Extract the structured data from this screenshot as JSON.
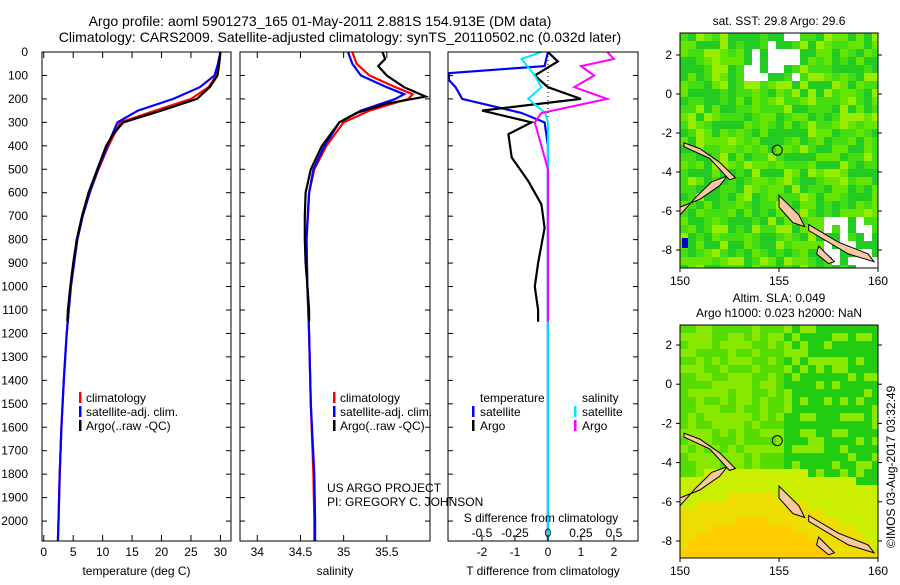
{
  "title": {
    "line1": "Argo profile: aoml 5901273_165 01-May-2011 2.881S 154.913E (DM data)",
    "line2": "Climatology: CARS2009. Satellite-adjusted climatology: synTS_20110502.nc (0.032d later)"
  },
  "colors": {
    "climatology": "#ff0000",
    "satellite": "#0000ff",
    "argo": "#000000",
    "sal_satellite": "#00e8ff",
    "sal_argo": "#ff00ff"
  },
  "chart_data": [
    {
      "type": "line",
      "name": "temperature",
      "xlabel": "temperature (deg C)",
      "ylabel": "depth",
      "xlim": [
        -0.3,
        31.8
      ],
      "ylim": [
        0,
        2085
      ],
      "xticks": [
        0,
        5,
        10,
        15,
        20,
        25,
        30
      ],
      "yticks": [
        0,
        100,
        200,
        300,
        400,
        500,
        600,
        700,
        800,
        900,
        1000,
        1100,
        1200,
        1300,
        1400,
        1500,
        1600,
        1700,
        1800,
        1900,
        2000
      ],
      "legend": [
        "climatology",
        "satellite-adj. clim.",
        "Argo(..raw -QC)"
      ],
      "series": [
        {
          "name": "climatology",
          "color": "#ff0000",
          "depth": [
            0,
            50,
            100,
            150,
            200,
            250,
            300,
            400,
            500,
            600,
            700,
            800,
            1000,
            1200,
            1400,
            1600,
            1800,
            2000,
            2085
          ],
          "values": [
            30,
            29.8,
            29.3,
            28,
            25,
            19,
            13,
            11,
            9.3,
            7.8,
            6.6,
            5.7,
            4.6,
            3.9,
            3.4,
            3,
            2.7,
            2.5,
            2.4
          ]
        },
        {
          "name": "satellite-adj. clim.",
          "color": "#0000ff",
          "depth": [
            0,
            50,
            100,
            150,
            200,
            250,
            300,
            400,
            500,
            600,
            700,
            800,
            1000,
            1200,
            1400,
            1600,
            1800,
            2000,
            2085
          ],
          "values": [
            30,
            29.6,
            29,
            26.5,
            22,
            16,
            12.5,
            10.8,
            9.2,
            7.8,
            6.6,
            5.7,
            4.6,
            3.9,
            3.4,
            3,
            2.7,
            2.5,
            2.4
          ]
        },
        {
          "name": "Argo(..raw -QC)",
          "color": "#000000",
          "depth": [
            0,
            50,
            100,
            150,
            200,
            250,
            300,
            350,
            400,
            500,
            600,
            700,
            800,
            900,
            1000,
            1100,
            1150
          ],
          "values": [
            30,
            29.8,
            29.5,
            28.2,
            26,
            20,
            13.5,
            11.8,
            10.6,
            9.1,
            7.6,
            6.5,
            5.6,
            5,
            4.5,
            4.1,
            4
          ]
        }
      ]
    },
    {
      "type": "line",
      "name": "salinity",
      "xlabel": "salinity",
      "ylabel": "depth",
      "xlim": [
        33.8,
        36.0
      ],
      "ylim": [
        0,
        2085
      ],
      "xticks": [
        34,
        34.5,
        35,
        35.5
      ],
      "legend": [
        "climatology",
        "satellite-adj. clim.",
        "Argo(..raw -QC)"
      ],
      "series": [
        {
          "name": "climatology",
          "color": "#ff0000",
          "depth": [
            0,
            50,
            100,
            150,
            180,
            200,
            250,
            300,
            400,
            500,
            600,
            800,
            1000,
            1200,
            1500,
            1800,
            2000,
            2085
          ],
          "values": [
            35.1,
            35.15,
            35.3,
            35.6,
            35.8,
            35.75,
            35.3,
            35.0,
            34.8,
            34.66,
            34.6,
            34.57,
            34.58,
            34.6,
            34.62,
            34.65,
            34.66,
            34.66
          ]
        },
        {
          "name": "satellite-adj. clim.",
          "color": "#0000ff",
          "depth": [
            0,
            50,
            100,
            150,
            180,
            200,
            250,
            300,
            400,
            500,
            600,
            800,
            1000,
            1200,
            1500,
            1800,
            2000,
            2085
          ],
          "values": [
            35.05,
            35.1,
            35.2,
            35.5,
            35.7,
            35.6,
            35.2,
            34.95,
            34.78,
            34.65,
            34.6,
            34.57,
            34.58,
            34.6,
            34.62,
            34.66,
            34.67,
            34.67
          ]
        },
        {
          "name": "Argo(..raw -QC)",
          "color": "#000000",
          "depth": [
            0,
            30,
            60,
            100,
            150,
            190,
            220,
            260,
            300,
            400,
            500,
            600,
            700,
            800,
            900,
            1000,
            1100,
            1150
          ],
          "values": [
            35.45,
            35.48,
            35.4,
            35.5,
            35.7,
            35.95,
            35.5,
            35.15,
            34.95,
            34.75,
            34.62,
            34.56,
            34.55,
            34.55,
            34.56,
            34.58,
            34.6,
            34.6
          ]
        }
      ]
    },
    {
      "type": "line",
      "name": "difference",
      "xlabel": "T difference from climatology",
      "x2label": "S difference from climatology",
      "ylim": [
        0,
        2085
      ],
      "xlim": [
        -3.03,
        2.73
      ],
      "xticks": [
        -2,
        -1,
        0,
        1,
        2
      ],
      "x2ticks": [
        "-0.5",
        "-0.25",
        "0",
        "0.25",
        "0.5"
      ],
      "legend": {
        "temperature": "temperature",
        "salinity": "salinity",
        "satellite": "satellite",
        "argo": "Argo"
      },
      "series": [
        {
          "name": "T satellite",
          "color": "#0000ff",
          "depth": [
            0,
            60,
            90,
            120,
            150,
            200,
            260,
            300,
            350,
            400,
            600,
            1000,
            1500,
            2085
          ],
          "values": [
            0,
            -0.1,
            -3,
            -3,
            -2.8,
            -2.6,
            -0.8,
            -0.1,
            -0.05,
            0,
            0,
            0,
            0,
            0
          ]
        },
        {
          "name": "T Argo",
          "color": "#000000",
          "depth": [
            0,
            40,
            100,
            150,
            200,
            250,
            300,
            350,
            450,
            550,
            650,
            750,
            900,
            1000,
            1100,
            1150
          ],
          "values": [
            0,
            0.3,
            -0.4,
            0,
            1,
            -2,
            -0.5,
            -1.2,
            -1.1,
            -0.6,
            -0.2,
            -0.1,
            -0.3,
            -0.4,
            -0.3,
            -0.3
          ]
        },
        {
          "name": "S satellite",
          "color": "#00e8ff",
          "depth": [
            0,
            30,
            100,
            150,
            200,
            260,
            300,
            400,
            800,
            1500,
            2085
          ],
          "values": [
            -0.05,
            -0.2,
            -0.1,
            -0.05,
            -0.15,
            -0.02,
            0,
            0,
            0,
            0,
            0
          ]
        },
        {
          "name": "S Argo",
          "color": "#ff00ff",
          "depth": [
            0,
            30,
            60,
            100,
            150,
            200,
            260,
            300,
            400,
            500,
            700,
            1000,
            1150
          ],
          "values": [
            0.45,
            0.5,
            0.25,
            0.35,
            0.2,
            0.45,
            -0.05,
            -0.1,
            -0.05,
            0,
            0,
            0,
            0
          ]
        }
      ]
    }
  ],
  "maps": [
    {
      "title": "sat. SST: 29.8 Argo: 29.6",
      "xticks": [
        "150",
        "155",
        "160"
      ],
      "yticks": [
        "2",
        "0",
        "-2",
        "-4",
        "-6",
        "-8"
      ]
    },
    {
      "title1": "Altim. SLA: 0.049",
      "title2": "Argo h1000: 0.023 h2000: NaN",
      "xticks": [
        "150",
        "155",
        "160"
      ],
      "yticks": [
        "2",
        "0",
        "-2",
        "-4",
        "-6",
        "-8"
      ]
    }
  ],
  "credit": {
    "line1": "US ARGO PROJECT",
    "line2": "PI: GREGORY C. JOHNSON"
  },
  "timestamp": "©IMOS 03-Aug-2017 03:32:49"
}
